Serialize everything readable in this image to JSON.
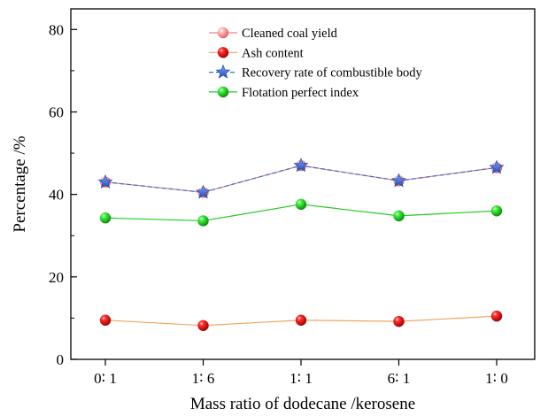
{
  "chart_data": {
    "type": "line",
    "title": "",
    "xlabel": "Mass ratio of dodecane /kerosene",
    "ylabel": "Percentage /%",
    "categories": [
      "0∶ 1",
      "1∶ 6",
      "1∶ 1",
      "6∶ 1",
      "1∶ 0"
    ],
    "ylim": [
      0,
      85
    ],
    "yticks": [
      0,
      20,
      40,
      60,
      80
    ],
    "grid": false,
    "legend_position": "top-center",
    "series": [
      {
        "name": "Cleaned coal yield",
        "values": [
          43.0,
          40.5,
          47.0,
          43.3,
          46.5
        ],
        "color": "#f08080",
        "line_style": "solid",
        "marker": "sphere-pink"
      },
      {
        "name": "Ash content",
        "values": [
          9.5,
          8.2,
          9.5,
          9.2,
          10.5
        ],
        "color": "#f4a460",
        "line_style": "solid",
        "marker": "sphere-red"
      },
      {
        "name": "Recovery rate of combustible body",
        "values": [
          43.0,
          40.5,
          47.0,
          43.3,
          46.5
        ],
        "color": "#3a6fd8",
        "line_style": "dashed",
        "marker": "star-blue"
      },
      {
        "name": "Flotation perfect index",
        "values": [
          34.3,
          33.6,
          37.6,
          34.8,
          36.0
        ],
        "color": "#22cc22",
        "line_style": "solid",
        "marker": "sphere-green"
      }
    ]
  }
}
